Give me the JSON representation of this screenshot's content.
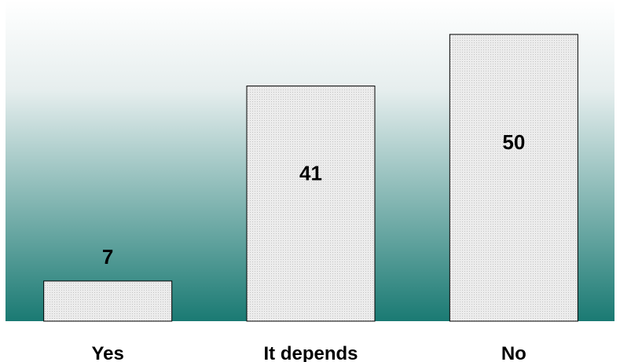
{
  "chart_data": {
    "type": "bar",
    "categories": [
      "Yes",
      "It depends",
      "No"
    ],
    "values": [
      7,
      41,
      50
    ],
    "title": "",
    "xlabel": "",
    "ylabel": "",
    "ylim": [
      0,
      56
    ],
    "grid": false,
    "legend": "none",
    "data_labels": true,
    "colors": {
      "plot_bg_top": "#ffffff",
      "plot_bg_bottom": "#1a7a73",
      "bar_fill": "#ececec",
      "bar_dots": "#c4c4c4",
      "bar_stroke": "#000000",
      "text": "#000000"
    }
  }
}
